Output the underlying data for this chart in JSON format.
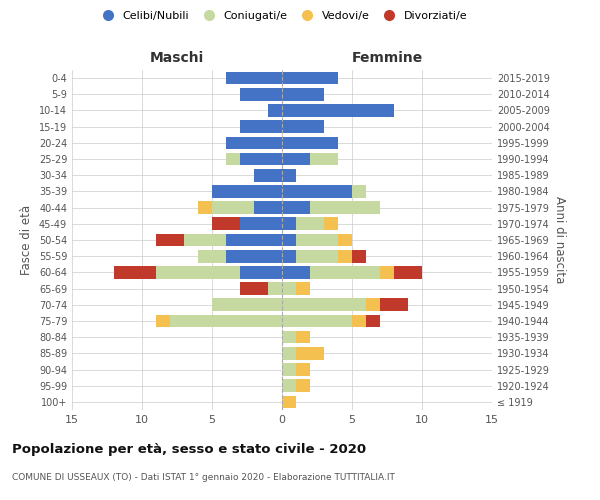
{
  "age_groups": [
    "100+",
    "95-99",
    "90-94",
    "85-89",
    "80-84",
    "75-79",
    "70-74",
    "65-69",
    "60-64",
    "55-59",
    "50-54",
    "45-49",
    "40-44",
    "35-39",
    "30-34",
    "25-29",
    "20-24",
    "15-19",
    "10-14",
    "5-9",
    "0-4"
  ],
  "birth_years": [
    "≤ 1919",
    "1920-1924",
    "1925-1929",
    "1930-1934",
    "1935-1939",
    "1940-1944",
    "1945-1949",
    "1950-1954",
    "1955-1959",
    "1960-1964",
    "1965-1969",
    "1970-1974",
    "1975-1979",
    "1980-1984",
    "1985-1989",
    "1990-1994",
    "1995-1999",
    "2000-2004",
    "2005-2009",
    "2010-2014",
    "2015-2019"
  ],
  "males": {
    "celibe": [
      0,
      0,
      0,
      0,
      0,
      0,
      0,
      0,
      3,
      4,
      4,
      3,
      2,
      5,
      2,
      3,
      4,
      3,
      1,
      3,
      4
    ],
    "coniugato": [
      0,
      0,
      0,
      0,
      0,
      8,
      5,
      1,
      6,
      2,
      3,
      0,
      3,
      0,
      0,
      1,
      0,
      0,
      0,
      0,
      0
    ],
    "vedovo": [
      0,
      0,
      0,
      0,
      0,
      1,
      0,
      0,
      0,
      0,
      0,
      0,
      1,
      0,
      0,
      0,
      0,
      0,
      0,
      0,
      0
    ],
    "divorziato": [
      0,
      0,
      0,
      0,
      0,
      0,
      0,
      2,
      3,
      0,
      2,
      2,
      0,
      0,
      0,
      0,
      0,
      0,
      0,
      0,
      0
    ]
  },
  "females": {
    "nubile": [
      0,
      0,
      0,
      0,
      0,
      0,
      0,
      0,
      2,
      1,
      1,
      1,
      2,
      5,
      1,
      2,
      4,
      3,
      8,
      3,
      4
    ],
    "coniugata": [
      0,
      1,
      1,
      1,
      1,
      5,
      6,
      1,
      5,
      3,
      3,
      2,
      5,
      1,
      0,
      2,
      0,
      0,
      0,
      0,
      0
    ],
    "vedova": [
      1,
      1,
      1,
      2,
      1,
      1,
      1,
      1,
      1,
      1,
      1,
      1,
      0,
      0,
      0,
      0,
      0,
      0,
      0,
      0,
      0
    ],
    "divorziata": [
      0,
      0,
      0,
      0,
      0,
      1,
      2,
      0,
      2,
      1,
      0,
      0,
      0,
      0,
      0,
      0,
      0,
      0,
      0,
      0,
      0
    ]
  },
  "colors": {
    "celibe": "#4472C4",
    "coniugato": "#C5D9A0",
    "vedovo": "#F4C050",
    "divorziato": "#C0392B"
  },
  "xlim": 15,
  "title": "Popolazione per età, sesso e stato civile - 2020",
  "subtitle": "COMUNE DI USSEAUX (TO) - Dati ISTAT 1° gennaio 2020 - Elaborazione TUTTITALIA.IT",
  "ylabel_left": "Fasce di età",
  "ylabel_right": "Anni di nascita",
  "xlabel_left": "Maschi",
  "xlabel_right": "Femmine",
  "legend_labels": [
    "Celibi/Nubili",
    "Coniugati/e",
    "Vedovi/e",
    "Divorziati/e"
  ],
  "grid_color": "#cccccc"
}
